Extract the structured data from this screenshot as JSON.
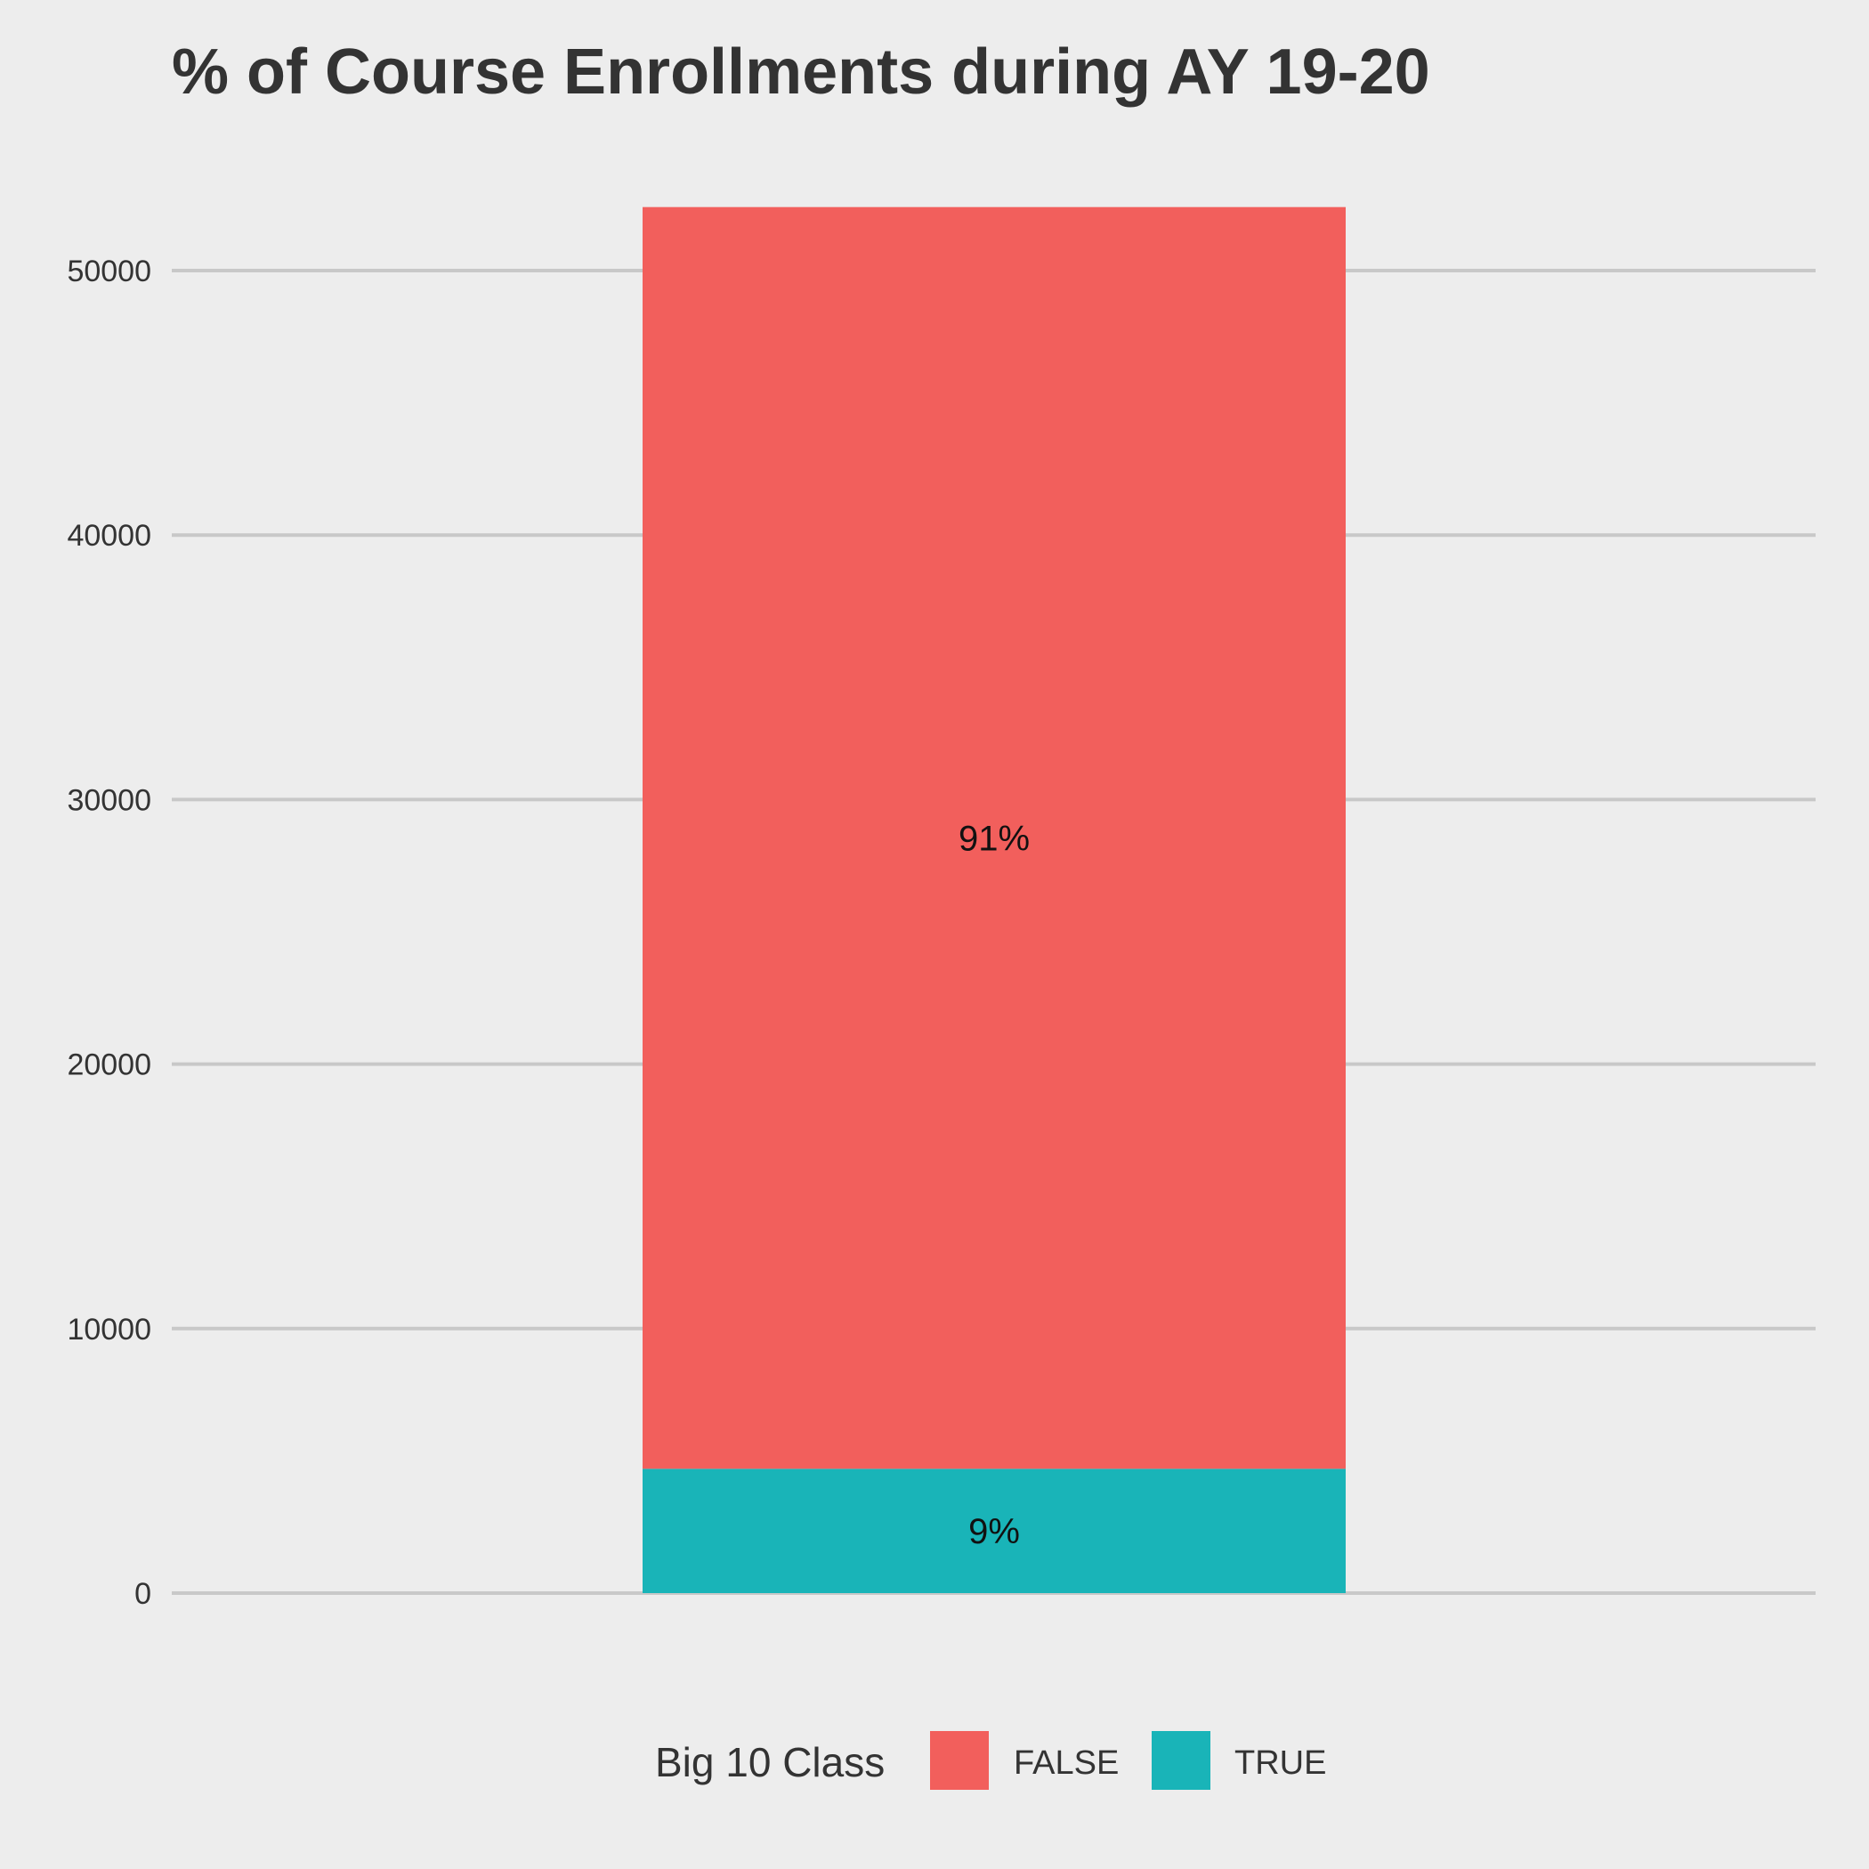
{
  "chart_data": {
    "type": "bar",
    "stacked": true,
    "title": "% of Course Enrollments during AY 19-20",
    "xlabel": "",
    "ylabel": "",
    "categories": [
      ""
    ],
    "ylim": [
      0,
      52400
    ],
    "yticks": [
      0,
      10000,
      20000,
      30000,
      40000,
      50000
    ],
    "ytick_labels": [
      "0",
      "10000",
      "20000",
      "30000",
      "40000",
      "50000"
    ],
    "grid": true,
    "legend": {
      "title": "Big 10 Class",
      "position": "bottom"
    },
    "series": [
      {
        "name": "TRUE",
        "color": "#19b4b8",
        "values": [
          4700
        ],
        "label": "9%"
      },
      {
        "name": "FALSE",
        "color": "#f25f5c",
        "values": [
          47700
        ],
        "label": "91%"
      }
    ]
  }
}
